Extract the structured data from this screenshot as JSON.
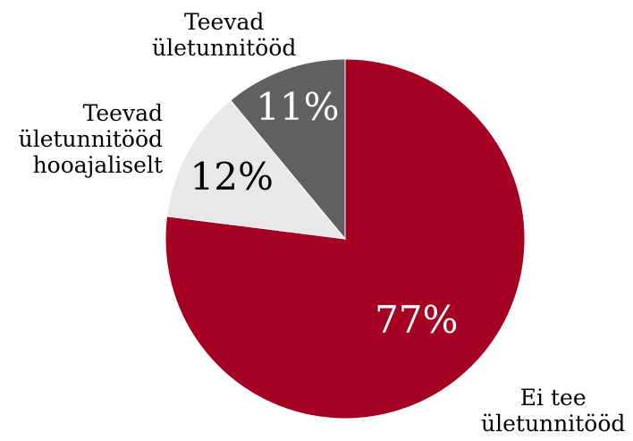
{
  "chart_data": {
    "type": "pie",
    "slices": [
      {
        "label_lines": [
          "Ei tee",
          "ületunnitööd"
        ],
        "value": 77,
        "display": "77%",
        "color": "#a50021",
        "text_color": "#ffffff"
      },
      {
        "label_lines": [
          "Teevad",
          "ületunnitööd",
          "hooajaliselt"
        ],
        "value": 12,
        "display": "12%",
        "color": "#e8e8e8",
        "text_color": "#000000"
      },
      {
        "label_lines": [
          "Teevad",
          "ületunnitööd"
        ],
        "value": 11,
        "display": "11%",
        "color": "#606060",
        "text_color": "#ffffff"
      }
    ],
    "start": "12 o'clock",
    "direction": "clockwise",
    "legend": "none"
  }
}
